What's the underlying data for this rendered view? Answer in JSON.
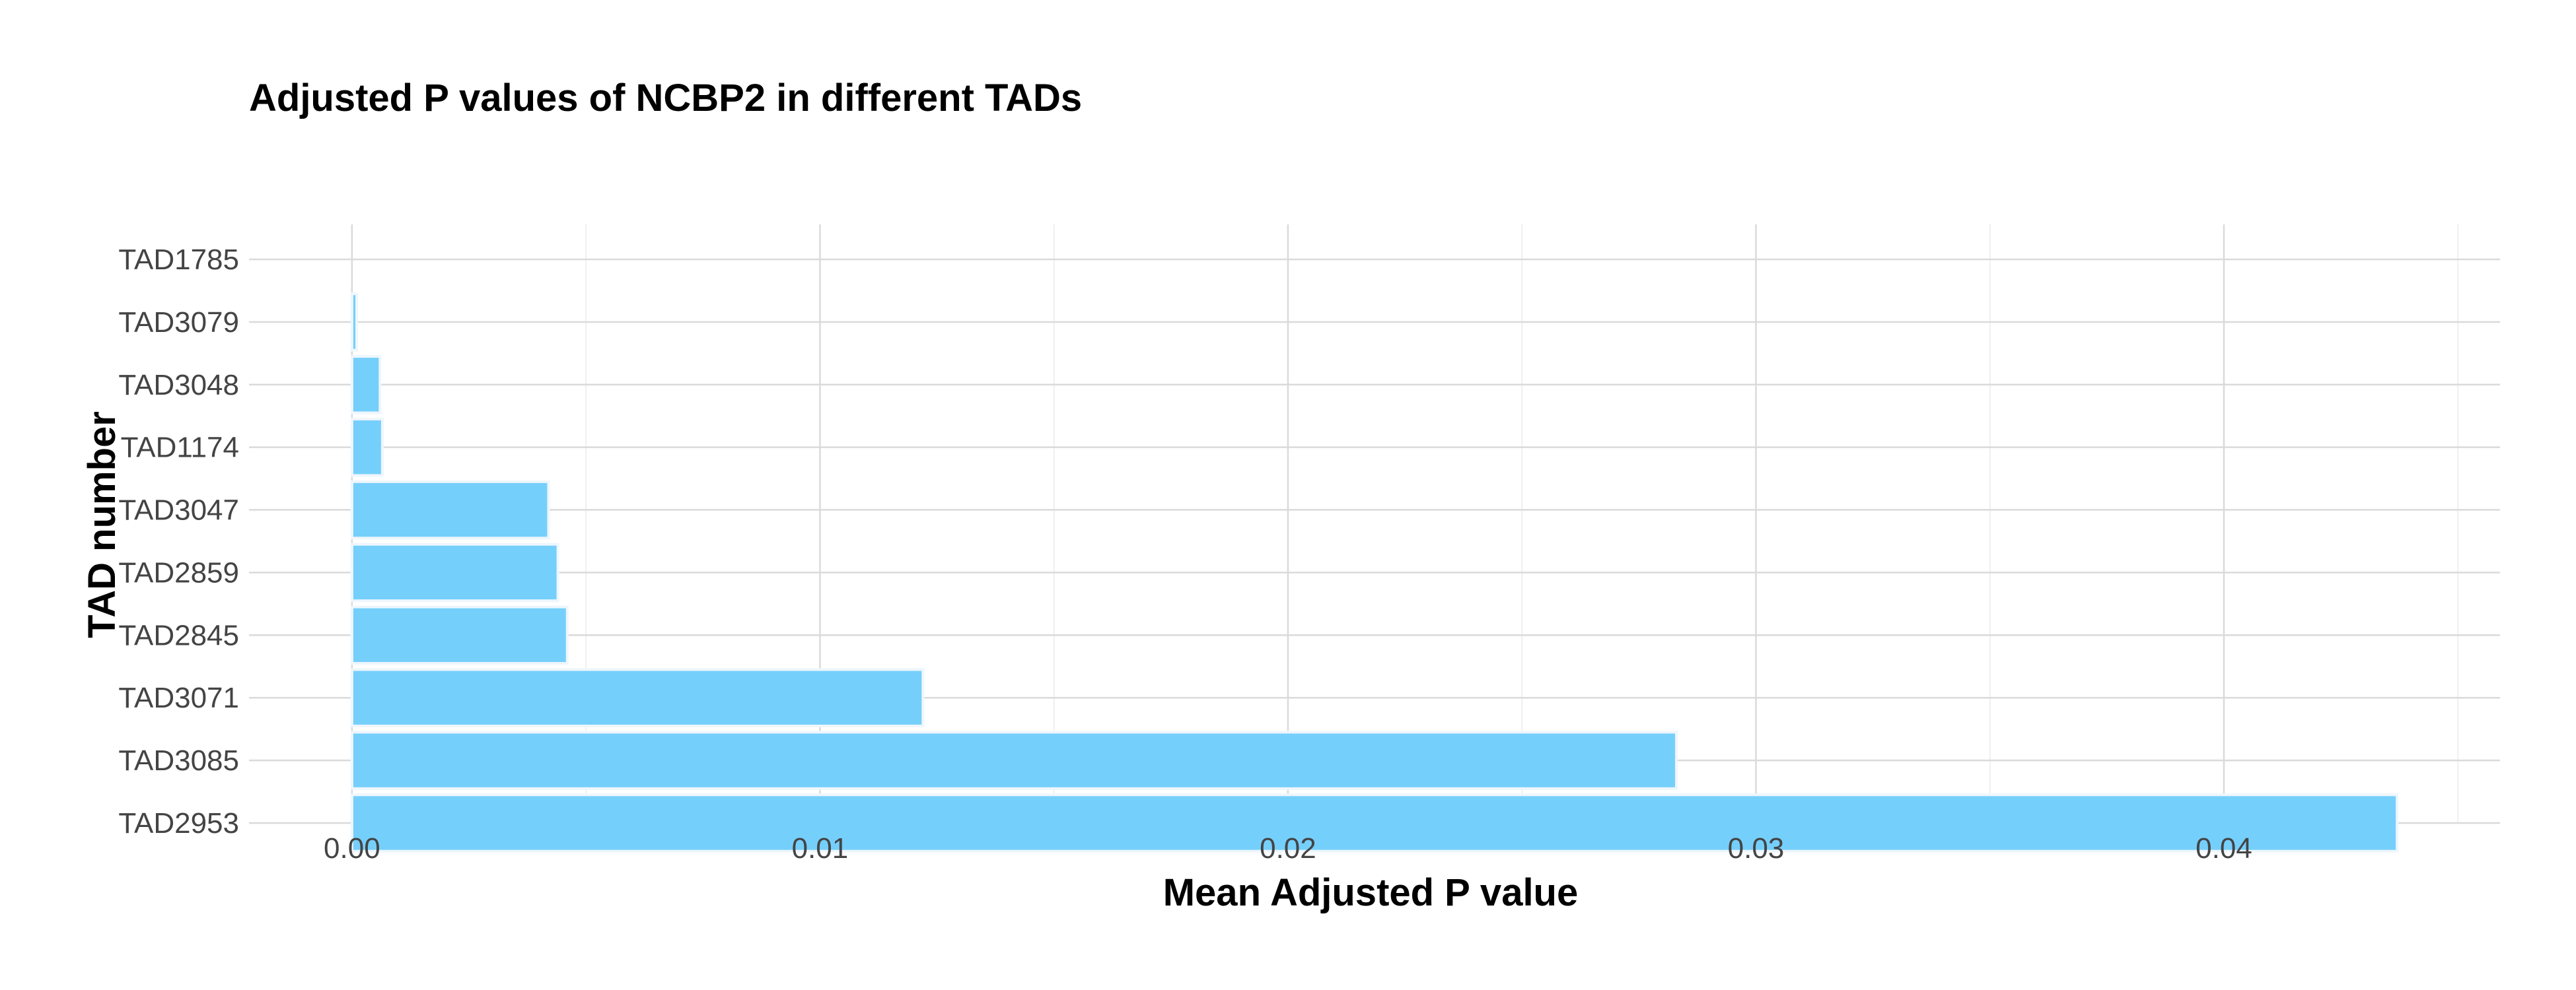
{
  "chart_data": {
    "type": "bar",
    "orientation": "horizontal",
    "title": "Adjusted P values of NCBP2 in different TADs",
    "xlabel": "Mean Adjusted P value",
    "ylabel": "TAD number",
    "categories": [
      "TAD1785",
      "TAD3079",
      "TAD3048",
      "TAD1174",
      "TAD3047",
      "TAD2859",
      "TAD2845",
      "TAD3071",
      "TAD3085",
      "TAD2953"
    ],
    "values": [
      0.0,
      0.0001,
      0.0006,
      0.00065,
      0.0042,
      0.0044,
      0.0046,
      0.0122,
      0.0283,
      0.0437
    ],
    "xlim": [
      -0.0022,
      0.0459
    ],
    "xticks": [
      0.0,
      0.01,
      0.02,
      0.03,
      0.04
    ],
    "xtick_labels": [
      "0.00",
      "0.01",
      "0.02",
      "0.03",
      "0.04"
    ],
    "grid": true,
    "legend": "none",
    "bar_color": "#75cffb",
    "bar_edge_color": "#eef6fc"
  }
}
